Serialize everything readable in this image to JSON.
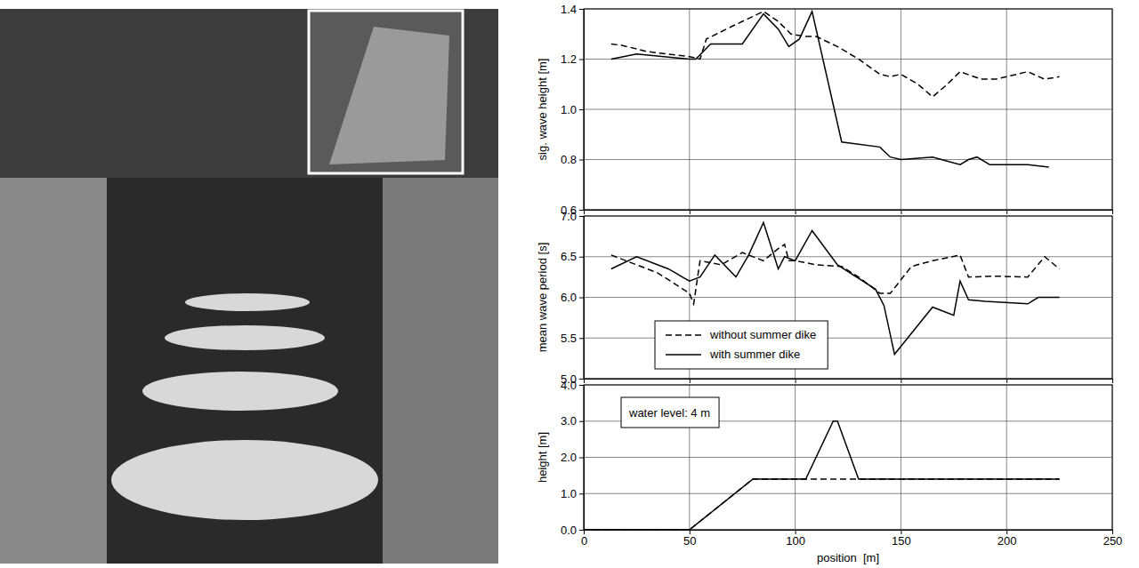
{
  "chart_data": [
    {
      "type": "line",
      "ylabel": "sig. wave height [m]",
      "xlim": [
        0,
        250
      ],
      "xticks": [
        0,
        50,
        100,
        150,
        200,
        250
      ],
      "ylim": [
        0.6,
        1.4
      ],
      "yticks": [
        0.6,
        0.8,
        {
          "value": 1,
          "label": "1.0"
        },
        1.2,
        1.4
      ],
      "grid": true,
      "tick_labels": "y",
      "series": [
        {
          "color": "#000000",
          "line_style": "dashed",
          "x": [
            13,
            18,
            30,
            40,
            50,
            55,
            58,
            70,
            85,
            92,
            98,
            105,
            110,
            120,
            130,
            140,
            145,
            150,
            158,
            165,
            172,
            178,
            188,
            195,
            210,
            218,
            225
          ],
          "values": [
            1.26,
            1.255,
            1.23,
            1.22,
            1.21,
            1.2,
            1.28,
            1.33,
            1.39,
            1.35,
            1.3,
            1.29,
            1.29,
            1.25,
            1.2,
            1.14,
            1.13,
            1.14,
            1.1,
            1.05,
            1.1,
            1.15,
            1.12,
            1.12,
            1.15,
            1.12,
            1.13
          ]
        },
        {
          "color": "#000000",
          "line_style": "solid",
          "x": [
            13,
            25,
            50,
            53,
            60,
            70,
            75,
            85,
            92,
            97,
            102,
            108,
            122,
            140,
            145,
            150,
            165,
            178,
            182,
            186,
            192,
            210,
            220
          ],
          "values": [
            1.2,
            1.22,
            1.2,
            1.2,
            1.26,
            1.26,
            1.26,
            1.38,
            1.32,
            1.25,
            1.28,
            1.39,
            0.87,
            0.85,
            0.81,
            0.8,
            0.81,
            0.78,
            0.8,
            0.81,
            0.78,
            0.78,
            0.77
          ]
        }
      ]
    },
    {
      "type": "line",
      "ylabel": "mean wave period [s]",
      "xlim": [
        0,
        250
      ],
      "xticks": [
        0,
        50,
        100,
        150,
        200,
        250
      ],
      "ylim": [
        5,
        7
      ],
      "yticks": [
        {
          "value": 5,
          "label": "5.0"
        },
        5.5,
        {
          "value": 6,
          "label": "6.0"
        },
        6.5,
        {
          "value": 7,
          "label": "7.0"
        }
      ],
      "grid": true,
      "tick_labels": "y",
      "legend": "lower left",
      "series": [
        {
          "name": "without summer dike",
          "color": "#000000",
          "line_style": "dashed",
          "x": [
            13,
            25,
            35,
            50,
            52,
            55,
            65,
            75,
            85,
            92,
            95,
            97,
            100,
            110,
            122,
            130,
            140,
            145,
            155,
            165,
            178,
            182,
            195,
            210,
            218,
            225
          ],
          "values": [
            6.52,
            6.4,
            6.3,
            6.05,
            5.92,
            6.45,
            6.4,
            6.55,
            6.45,
            6.6,
            6.65,
            6.45,
            6.45,
            6.4,
            6.38,
            6.25,
            6.05,
            6.05,
            6.38,
            6.45,
            6.52,
            6.25,
            6.26,
            6.25,
            6.5,
            6.35
          ]
        },
        {
          "name": "with summer dike",
          "color": "#000000",
          "line_style": "solid",
          "x": [
            13,
            25,
            40,
            50,
            55,
            62,
            72,
            78,
            85,
            92,
            95,
            100,
            108,
            120,
            138,
            142,
            147,
            165,
            175,
            178,
            182,
            190,
            210,
            215,
            225
          ],
          "values": [
            6.35,
            6.5,
            6.35,
            6.2,
            6.25,
            6.52,
            6.25,
            6.52,
            6.92,
            6.35,
            6.5,
            6.45,
            6.82,
            6.4,
            6.1,
            5.9,
            5.3,
            5.88,
            5.78,
            6.2,
            5.97,
            5.95,
            5.92,
            6.0,
            6.0
          ]
        }
      ]
    },
    {
      "type": "line",
      "ylabel": "height [m]",
      "xlabel": "position  [m]",
      "xlim": [
        0,
        250
      ],
      "xticks": [
        0,
        50,
        100,
        150,
        200,
        250
      ],
      "ylim": [
        0,
        4
      ],
      "yticks": [
        {
          "value": 0,
          "label": "0.0"
        },
        {
          "value": 1,
          "label": "1.0"
        },
        {
          "value": 2,
          "label": "2.0"
        },
        {
          "value": 3,
          "label": "3.0"
        },
        {
          "value": 4,
          "label": "4.0"
        }
      ],
      "grid": true,
      "annotations": [
        {
          "text": "water level: 4 m"
        }
      ],
      "series": [
        {
          "color": "#000000",
          "line_style": "dashed",
          "x": [
            0,
            50,
            80,
            225
          ],
          "values": [
            0,
            0,
            1.4,
            1.4
          ]
        },
        {
          "color": "#000000",
          "line_style": "solid",
          "x": [
            0,
            50,
            80,
            105,
            118,
            120,
            130,
            225
          ],
          "values": [
            0,
            0,
            1.4,
            1.4,
            3,
            3,
            1.4,
            1.4
          ]
        }
      ]
    }
  ]
}
